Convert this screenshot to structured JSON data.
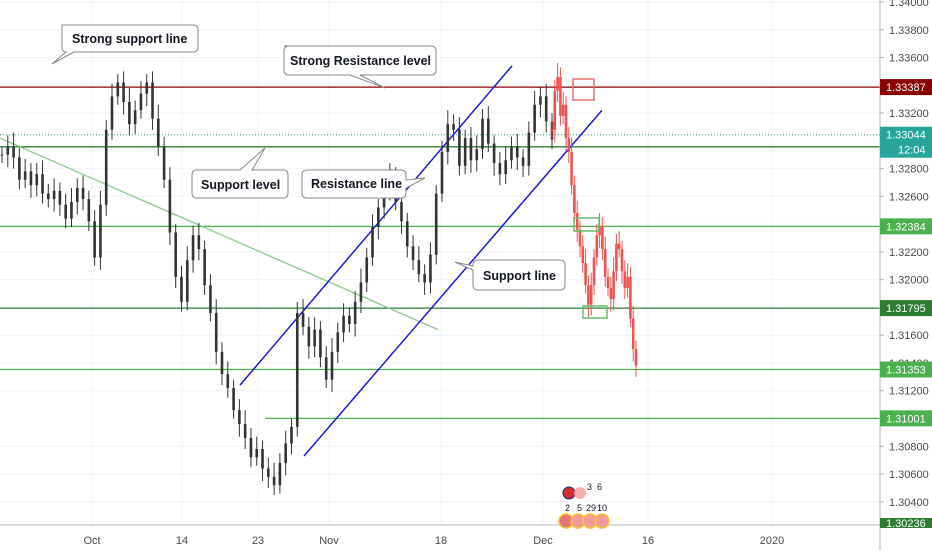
{
  "chart_data": {
    "type": "candlestick",
    "y_range": [
      1.3024,
      1.34
    ],
    "y_ticks": [
      "1.34000",
      "1.33800",
      "1.33600",
      "1.33400",
      "1.33200",
      "1.32800",
      "1.32600",
      "1.32400",
      "1.32200",
      "1.32000",
      "1.31600",
      "1.31400",
      "1.31200",
      "1.30800",
      "1.30600",
      "1.30400"
    ],
    "x_ticks": [
      "Oct",
      "14",
      "23",
      "Nov",
      "18",
      "Dec",
      "16",
      "2020"
    ],
    "horizontal_levels": [
      {
        "value": 1.33387,
        "label": "1.33387",
        "color": "#8b0000"
      },
      {
        "value": 1.32957,
        "label": "1.32957",
        "color": "#2e7d32"
      },
      {
        "value": 1.32384,
        "label": "1.32384",
        "color": "#4caf50"
      },
      {
        "value": 1.31795,
        "label": "1.31795",
        "color": "#2e7d32"
      },
      {
        "value": 1.31353,
        "label": "1.31353",
        "color": "#4caf50"
      },
      {
        "value": 1.31001,
        "label": "1.31001",
        "color": "#4caf50"
      }
    ],
    "current_price": {
      "value": 1.33044,
      "label": "1.33044",
      "countdown": "12:04",
      "color": "#26a69a"
    },
    "bottom_partial_label": "1.30236",
    "annotations": [
      {
        "id": "strong-support",
        "text": "Strong support line"
      },
      {
        "id": "strong-resistance",
        "text": "Strong Resistance level"
      },
      {
        "id": "support-level",
        "text": "Support level"
      },
      {
        "id": "resistance-line",
        "text": "Resistance line"
      },
      {
        "id": "support-line",
        "text": "Support line"
      }
    ],
    "events": {
      "top": [
        "3",
        "6"
      ],
      "bottom": [
        "2",
        "5",
        "29",
        "10"
      ]
    },
    "series": [
      {
        "name": "historical",
        "color": "#333333",
        "close": [
          1.329,
          1.3296,
          1.3288,
          1.3272,
          1.3278,
          1.3268,
          1.3276,
          1.3262,
          1.3258,
          1.3264,
          1.3254,
          1.3244,
          1.3256,
          1.3266,
          1.3258,
          1.3242,
          1.3216,
          1.3254,
          1.3308,
          1.3332,
          1.3342,
          1.3328,
          1.3312,
          1.3322,
          1.3334,
          1.3342,
          1.3316,
          1.3296,
          1.3272,
          1.3234,
          1.3202,
          1.3184,
          1.3214,
          1.3232,
          1.3222,
          1.3196,
          1.3176,
          1.3148,
          1.3132,
          1.3122,
          1.3106,
          1.3096,
          1.3086,
          1.3072,
          1.3078,
          1.3064,
          1.3058,
          1.3052,
          1.3068,
          1.3082,
          1.3094,
          1.3176,
          1.3166,
          1.3152,
          1.3164,
          1.3144,
          1.3128,
          1.3148,
          1.3162,
          1.3174,
          1.3168,
          1.3184,
          1.3198,
          1.3216,
          1.3238,
          1.3252,
          1.3264,
          1.3274,
          1.3256,
          1.3242,
          1.3224,
          1.3214,
          1.3204,
          1.3198,
          1.3218,
          1.3262,
          1.3292,
          1.3312,
          1.3308,
          1.3282,
          1.3302,
          1.3286,
          1.3294,
          1.3316,
          1.3298,
          1.3284,
          1.3276,
          1.3286,
          1.3296,
          1.3288,
          1.3282,
          1.3306,
          1.3326,
          1.3332,
          1.3314,
          1.3301
        ]
      },
      {
        "name": "projection",
        "color": "#ef5350",
        "close": [
          1.3308,
          1.3336,
          1.3346,
          1.3318,
          1.3326,
          1.3302,
          1.3292,
          1.3268,
          1.3248,
          1.3236,
          1.3224,
          1.3212,
          1.3196,
          1.3182,
          1.3196,
          1.3216,
          1.3232,
          1.3238,
          1.3222,
          1.3202,
          1.3194,
          1.3186,
          1.3206,
          1.3226,
          1.3222,
          1.3206,
          1.3194,
          1.3202,
          1.3172,
          1.315,
          1.3138
        ]
      }
    ]
  }
}
